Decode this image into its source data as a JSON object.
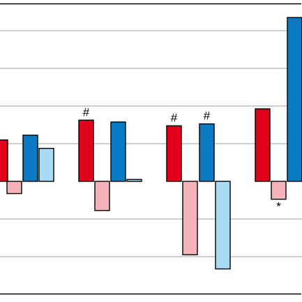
{
  "chart_data": {
    "type": "bar",
    "title": "",
    "xlabel": "",
    "ylabel": "",
    "ylim": [
      -5.8,
      8.5
    ],
    "gridlines": [
      -4,
      -2,
      2,
      4,
      6,
      8
    ],
    "grid": "horizontal",
    "legend": "none",
    "colors": {
      "dark_red": "#e0001b",
      "light_red": "#f4b3b8",
      "dark_blue": "#0a7ac4",
      "light_blue": "#a8dcf4",
      "gridline": "#bdbdbd",
      "frame": "#000000"
    },
    "groups": [
      {
        "bars": [
          {
            "value": 2.2,
            "color": "dark_red",
            "mark": ""
          },
          {
            "value": -0.65,
            "color": "light_red",
            "mark": ""
          },
          {
            "value": 2.45,
            "color": "dark_blue",
            "mark": ""
          },
          {
            "value": 1.75,
            "color": "light_blue",
            "mark": ""
          }
        ]
      },
      {
        "bars": [
          {
            "value": 3.25,
            "color": "dark_red",
            "mark": "#"
          },
          {
            "value": -1.55,
            "color": "light_red",
            "mark": ""
          },
          {
            "value": 3.15,
            "color": "dark_blue",
            "mark": ""
          },
          {
            "value": 0.1,
            "color": "light_blue",
            "mark": ""
          }
        ]
      },
      {
        "bars": [
          {
            "value": 2.95,
            "color": "dark_red",
            "mark": "#"
          },
          {
            "value": -3.9,
            "color": "light_red",
            "mark": ""
          },
          {
            "value": 3.05,
            "color": "dark_blue",
            "mark": "#"
          },
          {
            "value": -4.65,
            "color": "light_blue",
            "mark": ""
          }
        ]
      },
      {
        "bars": [
          {
            "value": 3.85,
            "color": "dark_red",
            "mark": ""
          },
          {
            "value": -0.95,
            "color": "light_red",
            "mark": "*"
          },
          {
            "value": 8.7,
            "color": "dark_blue",
            "mark": ""
          }
        ]
      }
    ]
  }
}
